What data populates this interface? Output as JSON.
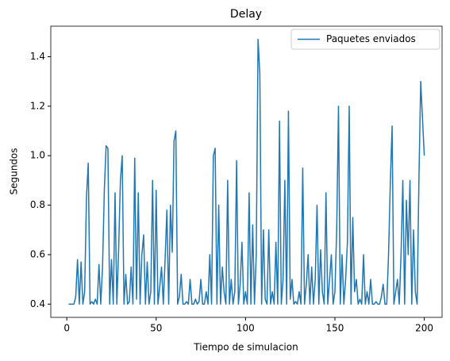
{
  "chart_data": {
    "type": "line",
    "title": "Delay",
    "x_label": "Tiempo de simulacion",
    "y_label": "Segundos",
    "x": [
      1,
      2,
      3,
      4,
      5,
      6,
      7,
      8,
      9,
      10,
      11,
      12,
      13,
      14,
      15,
      16,
      17,
      18,
      19,
      20,
      21,
      22,
      23,
      24,
      25,
      26,
      27,
      28,
      29,
      30,
      31,
      32,
      33,
      34,
      35,
      36,
      37,
      38,
      39,
      40,
      41,
      42,
      43,
      44,
      45,
      46,
      47,
      48,
      49,
      50,
      51,
      52,
      53,
      54,
      55,
      56,
      57,
      58,
      59,
      60,
      61,
      62,
      63,
      64,
      65,
      66,
      67,
      68,
      69,
      70,
      71,
      72,
      73,
      74,
      75,
      76,
      77,
      78,
      79,
      80,
      81,
      82,
      83,
      84,
      85,
      86,
      87,
      88,
      89,
      90,
      91,
      92,
      93,
      94,
      95,
      96,
      97,
      98,
      99,
      100,
      101,
      102,
      103,
      104,
      105,
      106,
      107,
      108,
      109,
      110,
      111,
      112,
      113,
      114,
      115,
      116,
      117,
      118,
      119,
      120,
      121,
      122,
      123,
      124,
      125,
      126,
      127,
      128,
      129,
      130,
      131,
      132,
      133,
      134,
      135,
      136,
      137,
      138,
      139,
      140,
      141,
      142,
      143,
      144,
      145,
      146,
      147,
      148,
      149,
      150,
      151,
      152,
      153,
      154,
      155,
      156,
      157,
      158,
      159,
      160,
      161,
      162,
      163,
      164,
      165,
      166,
      167,
      168,
      169,
      170,
      171,
      172,
      173,
      174,
      175,
      176,
      177,
      178,
      179,
      180,
      181,
      182,
      183,
      184,
      185,
      186,
      187,
      188,
      189,
      190,
      191,
      192,
      193,
      194,
      195,
      196,
      197,
      198,
      199,
      200
    ],
    "series": [
      {
        "name": "Paquetes enviados",
        "color": "#1f77b4",
        "values": [
          0.4,
          0.4,
          0.4,
          0.4,
          0.43,
          0.58,
          0.4,
          0.57,
          0.4,
          0.45,
          0.83,
          0.97,
          0.4,
          0.41,
          0.4,
          0.42,
          0.4,
          0.56,
          0.4,
          0.55,
          0.86,
          1.04,
          1.03,
          0.4,
          0.58,
          0.4,
          0.85,
          0.4,
          0.62,
          0.9,
          1.0,
          0.4,
          0.52,
          0.4,
          0.41,
          0.55,
          0.4,
          0.99,
          0.42,
          0.85,
          0.4,
          0.6,
          0.68,
          0.4,
          0.57,
          0.4,
          0.45,
          0.9,
          0.4,
          0.86,
          0.4,
          0.47,
          0.55,
          0.4,
          0.58,
          0.78,
          0.4,
          0.8,
          0.61,
          1.06,
          1.1,
          0.4,
          0.43,
          0.52,
          0.4,
          0.4,
          0.41,
          0.4,
          0.5,
          0.4,
          0.4,
          0.42,
          0.4,
          0.41,
          0.5,
          0.4,
          0.4,
          0.45,
          0.4,
          0.6,
          0.4,
          1.0,
          1.03,
          0.4,
          0.8,
          0.4,
          0.55,
          0.45,
          0.4,
          0.9,
          0.4,
          0.5,
          0.4,
          0.45,
          0.98,
          0.4,
          0.48,
          0.65,
          0.4,
          0.45,
          0.4,
          0.85,
          0.4,
          0.72,
          0.4,
          0.6,
          1.47,
          1.33,
          0.4,
          0.7,
          0.42,
          0.4,
          0.7,
          0.4,
          0.45,
          0.4,
          0.65,
          0.4,
          1.14,
          0.4,
          0.5,
          0.9,
          0.4,
          1.18,
          0.42,
          0.5,
          0.4,
          0.41,
          0.4,
          0.45,
          0.4,
          0.95,
          0.4,
          0.48,
          0.6,
          0.4,
          0.55,
          0.4,
          0.5,
          0.8,
          0.4,
          0.62,
          0.45,
          0.4,
          0.85,
          0.4,
          0.5,
          0.6,
          0.4,
          0.45,
          0.7,
          1.2,
          0.4,
          0.6,
          0.4,
          0.5,
          0.65,
          1.2,
          0.4,
          0.75,
          0.45,
          0.5,
          0.4,
          0.42,
          0.4,
          0.6,
          0.4,
          0.45,
          0.4,
          0.5,
          0.4,
          0.4,
          0.41,
          0.4,
          0.4,
          0.43,
          0.48,
          0.4,
          0.4,
          0.6,
          0.89,
          1.12,
          0.4,
          0.45,
          0.5,
          0.4,
          0.6,
          0.9,
          0.4,
          0.82,
          0.6,
          0.9,
          0.4,
          0.7,
          0.45,
          0.4,
          0.9,
          1.3,
          1.15,
          1.0
        ]
      }
    ],
    "xlim": [
      -8.95,
      209.95
    ],
    "xticks": [
      0,
      50,
      100,
      150,
      200
    ],
    "ylim": [
      0.3465,
      1.5235
    ],
    "yticks": [
      0.4,
      0.6,
      0.8,
      {
        "value": 1,
        "label": "1.0"
      },
      1.2,
      1.4
    ],
    "legend": "upper right"
  }
}
